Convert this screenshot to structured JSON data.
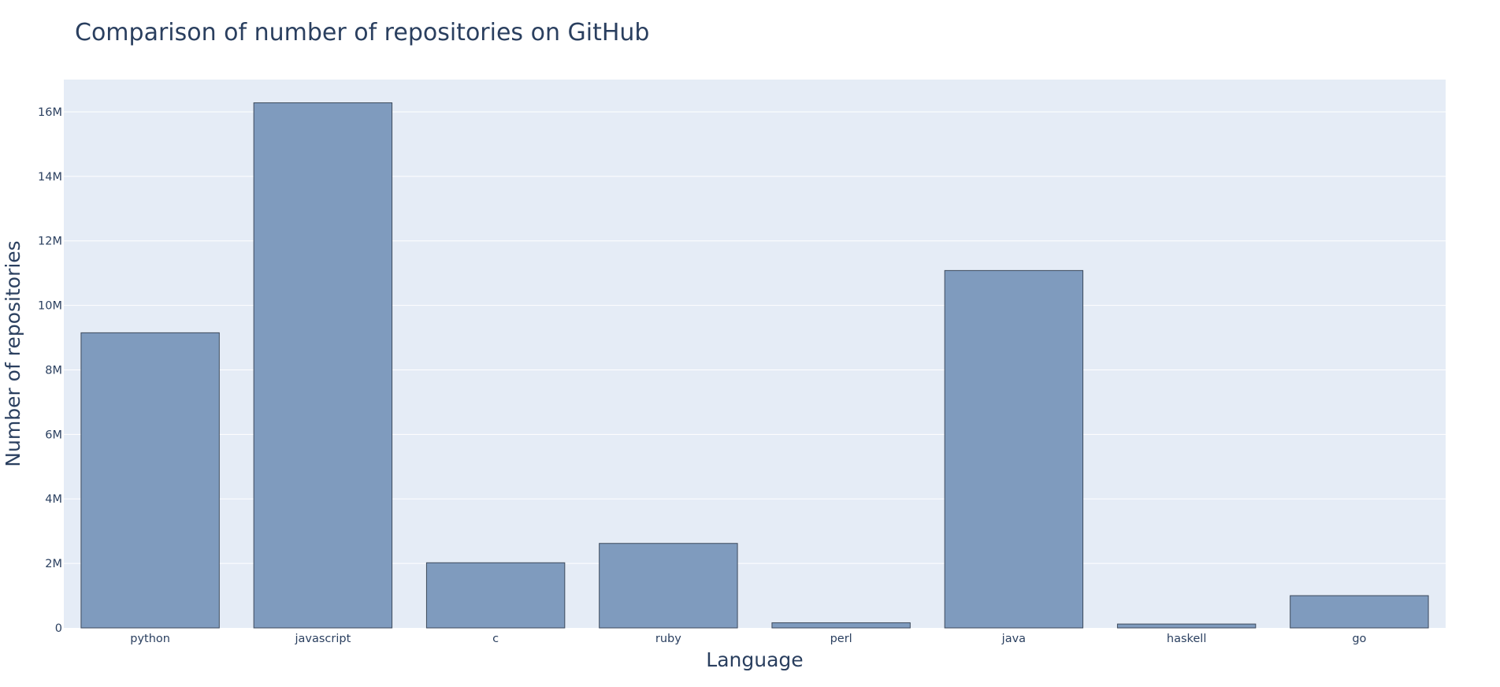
{
  "chart_data": {
    "type": "bar",
    "title": "Comparison of number of repositories on GitHub",
    "xlabel": "Language",
    "ylabel": "Number of repositories",
    "categories": [
      "python",
      "javascript",
      "c",
      "ruby",
      "perl",
      "java",
      "haskell",
      "go"
    ],
    "values": [
      9150000,
      16280000,
      2020000,
      2620000,
      160000,
      11080000,
      120000,
      1000000
    ],
    "ylim": [
      0,
      17000000
    ],
    "yticks": [
      0,
      2000000,
      4000000,
      6000000,
      8000000,
      10000000,
      12000000,
      14000000,
      16000000
    ],
    "ytick_labels": [
      "0",
      "2M",
      "4M",
      "6M",
      "8M",
      "10M",
      "12M",
      "14M",
      "16M"
    ],
    "grid": true,
    "legend": false,
    "colors": {
      "bar_fill": "#7f9bbe",
      "bar_outline": "#3d4a5c",
      "plot_background": "#e5ecf6",
      "text": "#2a3f5f"
    }
  }
}
